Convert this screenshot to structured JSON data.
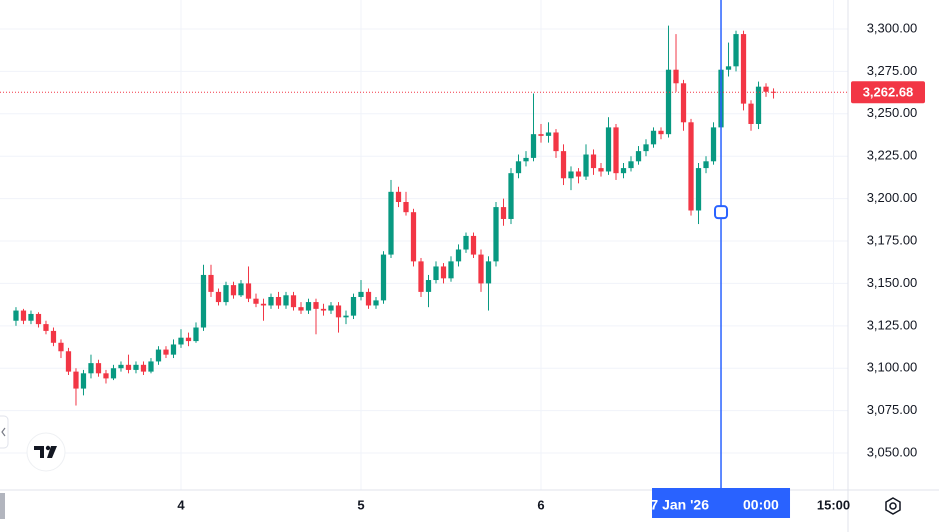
{
  "chart_data": {
    "type": "candlestick",
    "up_color": "#089981",
    "down_color": "#f23645",
    "grid": true,
    "xlim": [
      -0.13,
      112.93
    ],
    "ylim": [
      3028.2,
      3317.1
    ],
    "xticks": [
      {
        "value": 24,
        "label": "4"
      },
      {
        "value": 48,
        "label": "5"
      },
      {
        "value": 72,
        "label": "6"
      },
      {
        "value": 111,
        "label": "15:00"
      }
    ],
    "yticks": [
      {
        "value": 3300,
        "label": "3,300.00"
      },
      {
        "value": 3275,
        "label": "3,275.00"
      },
      {
        "value": 3250,
        "label": "3,250.00"
      },
      {
        "value": 3225,
        "label": "3,225.00"
      },
      {
        "value": 3200,
        "label": "3,200.00"
      },
      {
        "value": 3175,
        "label": "3,175.00"
      },
      {
        "value": 3150,
        "label": "3,150.00"
      },
      {
        "value": 3125,
        "label": "3,125.00"
      },
      {
        "value": 3100,
        "label": "3,100.00"
      },
      {
        "value": 3075,
        "label": "3,075.00"
      },
      {
        "value": 3050,
        "label": "3,050.00"
      }
    ],
    "last_price": {
      "value": 3262.68,
      "label": "3,262.68"
    },
    "crosshair": {
      "x": 96,
      "price": 3192,
      "date": "07 Jan '26",
      "time": "00:00"
    },
    "x": [
      2,
      3,
      4,
      5,
      6,
      7,
      8,
      9,
      10,
      11,
      12,
      13,
      14,
      15,
      16,
      17,
      18,
      19,
      20,
      21,
      22,
      23,
      24,
      25,
      26,
      27,
      28,
      29,
      30,
      31,
      32,
      33,
      34,
      35,
      36,
      37,
      38,
      39,
      40,
      41,
      42,
      43,
      44,
      45,
      46,
      47,
      48,
      49,
      50,
      51,
      52,
      53,
      54,
      55,
      56,
      57,
      58,
      59,
      60,
      61,
      62,
      63,
      64,
      65,
      66,
      67,
      68,
      69,
      70,
      71,
      72,
      73,
      74,
      75,
      76,
      77,
      78,
      79,
      80,
      81,
      82,
      83,
      84,
      85,
      86,
      87,
      88,
      89,
      90,
      91,
      92,
      93,
      94,
      95,
      96,
      97,
      98,
      99,
      100,
      101,
      102,
      103
    ],
    "open": [
      3128,
      3134,
      3128,
      3132,
      3126,
      3122,
      3115,
      3110,
      3098,
      3088,
      3097,
      3103,
      3097,
      3094,
      3100,
      3102,
      3099,
      3102,
      3098,
      3104,
      3111,
      3108,
      3114,
      3118,
      3116,
      3124,
      3155,
      3145,
      3139,
      3149,
      3143,
      3150,
      3141,
      3138,
      3137,
      3142,
      3137,
      3143,
      3136,
      3134,
      3139,
      3135,
      3134,
      3137,
      3130,
      3131,
      3142,
      3145,
      3137,
      3140,
      3167,
      3204,
      3198,
      3192,
      3163,
      3145,
      3152,
      3160,
      3153,
      3163,
      3170,
      3178,
      3167,
      3150,
      3163,
      3195,
      3188,
      3215,
      3222,
      3224,
      3238,
      3237,
      3239,
      3228,
      3212,
      3216,
      3213,
      3226,
      3218,
      3216,
      3242,
      3215,
      3218,
      3222,
      3228,
      3232,
      3240,
      3238,
      3276,
      3268,
      3245,
      3193,
      3218,
      3222,
      3242,
      3276,
      3278,
      3297,
      3256,
      3244,
      3266,
      3263
    ],
    "high": [
      3136,
      3135,
      3134,
      3133,
      3128,
      3124,
      3117,
      3112,
      3100,
      3099,
      3108,
      3105,
      3099,
      3102,
      3104,
      3108,
      3104,
      3104,
      3106,
      3113,
      3113,
      3117,
      3123,
      3121,
      3127,
      3161,
      3161,
      3147,
      3151,
      3151,
      3152,
      3160,
      3144,
      3141,
      3144,
      3145,
      3145,
      3145,
      3139,
      3141,
      3141,
      3138,
      3139,
      3139,
      3134,
      3144,
      3152,
      3147,
      3142,
      3169,
      3211,
      3207,
      3204,
      3194,
      3165,
      3155,
      3163,
      3162,
      3166,
      3173,
      3180,
      3180,
      3170,
      3166,
      3198,
      3200,
      3218,
      3226,
      3228,
      3262,
      3244,
      3245,
      3241,
      3232,
      3219,
      3218,
      3232,
      3229,
      3221,
      3248,
      3244,
      3221,
      3225,
      3231,
      3235,
      3242,
      3242,
      3302,
      3297,
      3270,
      3247,
      3221,
      3225,
      3245,
      3279,
      3292,
      3299,
      3299,
      3258,
      3269,
      3268,
      3265
    ],
    "low": [
      3125,
      3126,
      3126,
      3124,
      3120,
      3113,
      3106,
      3096,
      3078,
      3084,
      3094,
      3095,
      3091,
      3093,
      3098,
      3097,
      3097,
      3096,
      3097,
      3102,
      3106,
      3106,
      3112,
      3113,
      3115,
      3122,
      3142,
      3137,
      3137,
      3141,
      3142,
      3139,
      3136,
      3128,
      3135,
      3135,
      3135,
      3134,
      3132,
      3132,
      3120,
      3131,
      3132,
      3121,
      3126,
      3129,
      3140,
      3135,
      3135,
      3138,
      3165,
      3195,
      3190,
      3160,
      3142,
      3136,
      3150,
      3150,
      3151,
      3160,
      3168,
      3165,
      3145,
      3134,
      3160,
      3184,
      3185,
      3212,
      3219,
      3222,
      3233,
      3233,
      3224,
      3208,
      3205,
      3209,
      3211,
      3214,
      3213,
      3214,
      3211,
      3212,
      3216,
      3220,
      3225,
      3230,
      3235,
      3236,
      3263,
      3240,
      3190,
      3185,
      3215,
      3220,
      3240,
      3272,
      3275,
      3252,
      3240,
      3241,
      3260,
      3259
    ],
    "close": [
      3134,
      3128,
      3132,
      3126,
      3122,
      3115,
      3110,
      3098,
      3088,
      3097,
      3103,
      3097,
      3094,
      3100,
      3102,
      3099,
      3102,
      3098,
      3104,
      3111,
      3108,
      3114,
      3118,
      3116,
      3124,
      3155,
      3145,
      3139,
      3149,
      3143,
      3150,
      3141,
      3138,
      3137,
      3142,
      3137,
      3143,
      3136,
      3134,
      3139,
      3135,
      3134,
      3137,
      3130,
      3131,
      3142,
      3145,
      3137,
      3140,
      3167,
      3204,
      3198,
      3192,
      3163,
      3145,
      3152,
      3160,
      3153,
      3163,
      3170,
      3178,
      3167,
      3150,
      3163,
      3195,
      3188,
      3215,
      3222,
      3224,
      3238,
      3237,
      3239,
      3228,
      3212,
      3216,
      3213,
      3226,
      3218,
      3216,
      3242,
      3215,
      3218,
      3222,
      3228,
      3232,
      3240,
      3238,
      3276,
      3268,
      3245,
      3193,
      3218,
      3222,
      3242,
      3276,
      3278,
      3297,
      3256,
      3244,
      3266,
      3263,
      3262.68
    ]
  }
}
